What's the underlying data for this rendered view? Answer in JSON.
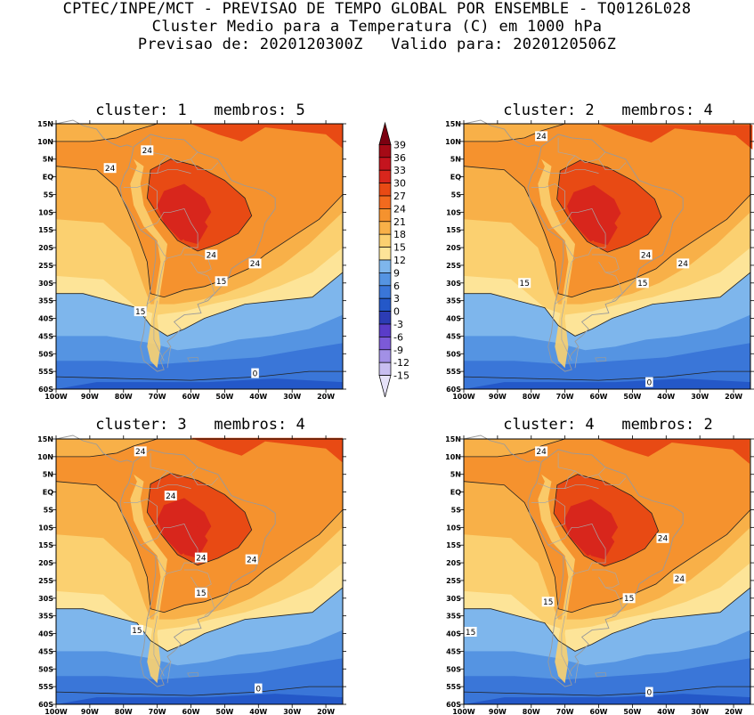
{
  "header": {
    "line1": "CPTEC/INPE/MCT - PREVISAO DE TEMPO GLOBAL POR ENSEMBLE - TQ0126L028",
    "line2": "Cluster Medio para a Temperatura (C) em 1000 hPa",
    "line3": "Previsao de: 2020120300Z   Valido para: 2020120506Z"
  },
  "lat_ticks": [
    "15N",
    "10N",
    "5N",
    "EQ",
    "5S",
    "10S",
    "15S",
    "20S",
    "25S",
    "30S",
    "35S",
    "40S",
    "45S",
    "50S",
    "55S",
    "60S"
  ],
  "lon_ticks": [
    "100W",
    "90W",
    "80W",
    "70W",
    "60W",
    "50W",
    "40W",
    "30W",
    "20W"
  ],
  "panels": [
    {
      "title": "cluster: 1   membros: 5",
      "labels": [
        {
          "text": "24",
          "lon": -73,
          "lat": 7.5
        },
        {
          "text": "24",
          "lon": -84,
          "lat": 2.5
        },
        {
          "text": "24",
          "lon": -54,
          "lat": -22
        },
        {
          "text": "24",
          "lon": -41,
          "lat": -24.5
        },
        {
          "text": "15",
          "lon": -51,
          "lat": -29.5
        },
        {
          "text": "15",
          "lon": -75,
          "lat": -38
        },
        {
          "text": "0",
          "lon": -41,
          "lat": -55.5
        }
      ]
    },
    {
      "title": "cluster: 2   membros: 4",
      "labels": [
        {
          "text": "24",
          "lon": -77,
          "lat": 11.5
        },
        {
          "text": "24",
          "lon": -46,
          "lat": -22
        },
        {
          "text": "24",
          "lon": -35,
          "lat": -24.5
        },
        {
          "text": "15",
          "lon": -82,
          "lat": -30
        },
        {
          "text": "15",
          "lon": -47,
          "lat": -30
        },
        {
          "text": "0",
          "lon": -45,
          "lat": -58
        }
      ]
    },
    {
      "title": "cluster: 3   membros: 4",
      "labels": [
        {
          "text": "24",
          "lon": -75,
          "lat": 11.5
        },
        {
          "text": "24",
          "lon": -66,
          "lat": -1
        },
        {
          "text": "24",
          "lon": -57,
          "lat": -18.5
        },
        {
          "text": "24",
          "lon": -42,
          "lat": -19
        },
        {
          "text": "15",
          "lon": -57,
          "lat": -28.5
        },
        {
          "text": "15",
          "lon": -76,
          "lat": -39
        },
        {
          "text": "0",
          "lon": -40,
          "lat": -55.5
        }
      ]
    },
    {
      "title": "cluster: 4   membros: 2",
      "labels": [
        {
          "text": "24",
          "lon": -77,
          "lat": 11.5
        },
        {
          "text": "24",
          "lon": -41,
          "lat": -13
        },
        {
          "text": "24",
          "lon": -36,
          "lat": -24.5
        },
        {
          "text": "15",
          "lon": -75,
          "lat": -31
        },
        {
          "text": "15",
          "lon": -51,
          "lat": -30
        },
        {
          "text": "15",
          "lon": -98,
          "lat": -39.5
        },
        {
          "text": "0",
          "lon": -45,
          "lat": -56.5
        }
      ]
    }
  ],
  "colorbar": {
    "labels": [
      "39",
      "36",
      "33",
      "30",
      "27",
      "24",
      "21",
      "18",
      "15",
      "12",
      "9",
      "6",
      "3",
      "0",
      "-3",
      "-6",
      "-9",
      "-12",
      "-15"
    ],
    "colors": [
      "#7b0010",
      "#a50a16",
      "#c4141e",
      "#d8261c",
      "#e84a14",
      "#f26a1e",
      "#f5922e",
      "#f8b048",
      "#fbd070",
      "#fde498",
      "#7eb6ec",
      "#5594e2",
      "#3a76d8",
      "#2458c8",
      "#2c3cb4",
      "#5a3cc8",
      "#7c5ad8",
      "#a290e6",
      "#c8bef0",
      "#e6e2f8"
    ]
  }
}
